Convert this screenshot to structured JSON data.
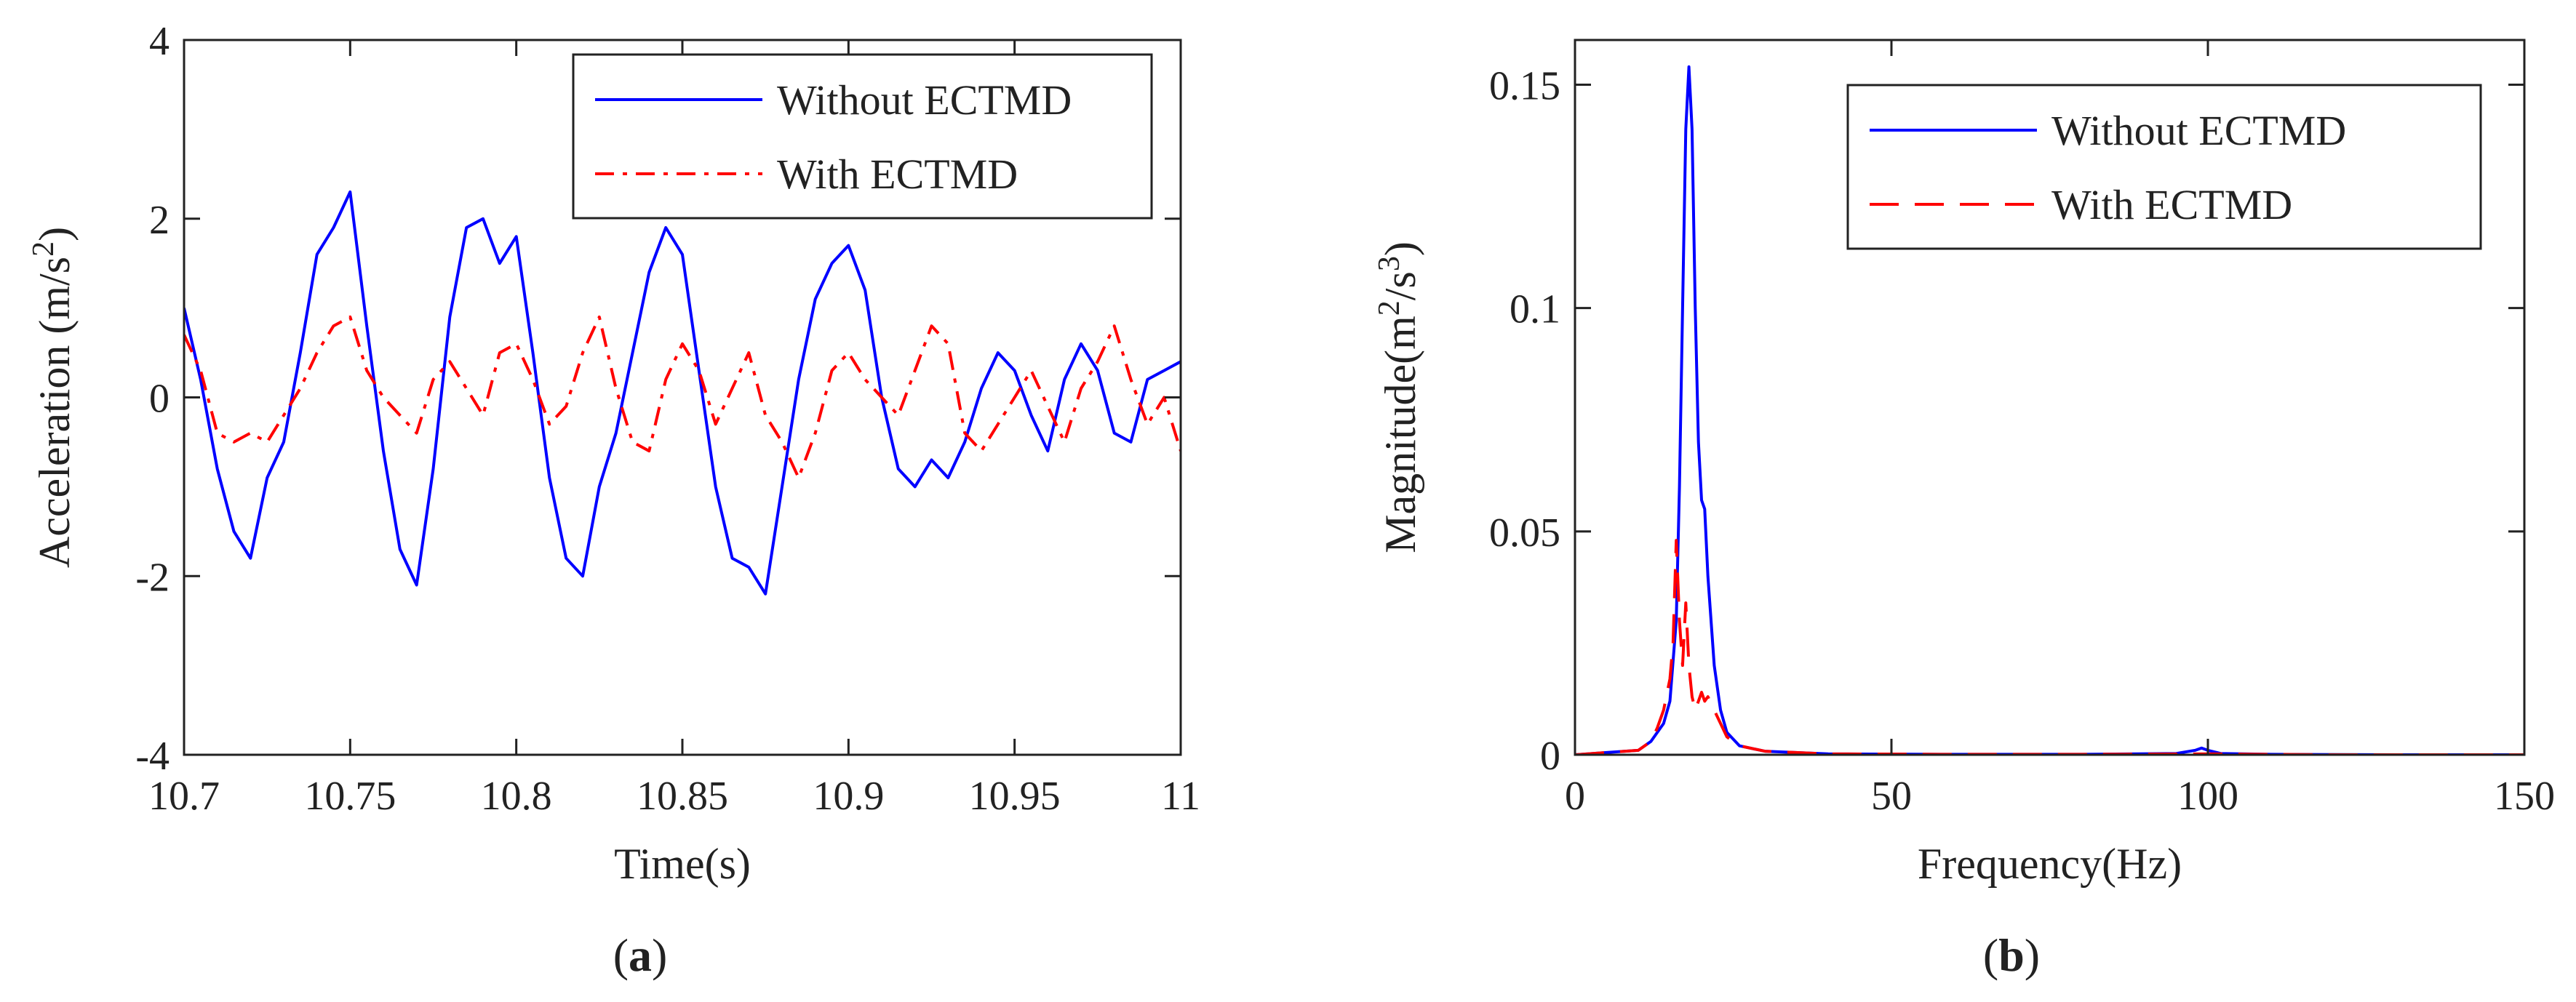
{
  "chart_data": [
    {
      "type": "line",
      "panel_label": "a",
      "xlabel": "Time(s)",
      "ylabel": "Acceleration (m/s²)",
      "ylabel_parts": {
        "prefix": "Acceleration (m/s",
        "sup": "2",
        "suffix": ")"
      },
      "xlim": [
        10.7,
        11.0
      ],
      "ylim": [
        -4,
        4
      ],
      "x_ticks": [
        10.7,
        10.75,
        10.8,
        10.85,
        10.9,
        10.95,
        11
      ],
      "x_tick_labels": [
        "10.7",
        "10.75",
        "10.8",
        "10.85",
        "10.9",
        "10.95",
        "11"
      ],
      "y_ticks": [
        -4,
        -2,
        0,
        2,
        4
      ],
      "y_tick_labels": [
        "-4",
        "-2",
        "0",
        "2",
        "4"
      ],
      "grid": false,
      "legend_position": "top-right",
      "series": [
        {
          "name": "Without ECTMD",
          "color": "#0000ff",
          "style": "solid",
          "x": [
            10.7,
            10.705,
            10.71,
            10.715,
            10.72,
            10.725,
            10.73,
            10.735,
            10.74,
            10.745,
            10.75,
            10.755,
            10.76,
            10.765,
            10.77,
            10.775,
            10.78,
            10.785,
            10.79,
            10.795,
            10.8,
            10.805,
            10.81,
            10.815,
            10.82,
            10.825,
            10.83,
            10.835,
            10.84,
            10.845,
            10.85,
            10.855,
            10.86,
            10.865,
            10.87,
            10.875,
            10.88,
            10.885,
            10.89,
            10.895,
            10.9,
            10.905,
            10.91,
            10.915,
            10.92,
            10.925,
            10.93,
            10.935,
            10.94,
            10.945,
            10.95,
            10.955,
            10.96,
            10.965,
            10.97,
            10.975,
            10.98,
            10.985,
            10.99,
            10.995,
            11.0
          ],
          "values": [
            1.0,
            0.2,
            -0.8,
            -1.5,
            -1.8,
            -0.9,
            -0.5,
            0.5,
            1.6,
            1.9,
            2.3,
            0.8,
            -0.6,
            -1.7,
            -2.1,
            -0.8,
            0.9,
            1.9,
            2.0,
            1.5,
            1.8,
            0.5,
            -0.9,
            -1.8,
            -2.0,
            -1.0,
            -0.4,
            0.5,
            1.4,
            1.9,
            1.6,
            0.3,
            -1.0,
            -1.8,
            -1.9,
            -2.2,
            -1.0,
            0.2,
            1.1,
            1.5,
            1.7,
            1.2,
            0.0,
            -0.8,
            -1.0,
            -0.7,
            -0.9,
            -0.5,
            0.1,
            0.5,
            0.3,
            -0.2,
            -0.6,
            0.2,
            0.6,
            0.3,
            -0.4,
            -0.5,
            0.2,
            0.3,
            0.4
          ]
        },
        {
          "name": "With ECTMD",
          "color": "#ff0000",
          "style": "dashdot",
          "x": [
            10.7,
            10.705,
            10.71,
            10.715,
            10.72,
            10.725,
            10.73,
            10.735,
            10.74,
            10.745,
            10.75,
            10.755,
            10.76,
            10.765,
            10.77,
            10.775,
            10.78,
            10.785,
            10.79,
            10.795,
            10.8,
            10.805,
            10.81,
            10.815,
            10.82,
            10.825,
            10.83,
            10.835,
            10.84,
            10.845,
            10.85,
            10.855,
            10.86,
            10.865,
            10.87,
            10.875,
            10.88,
            10.885,
            10.89,
            10.895,
            10.9,
            10.905,
            10.91,
            10.915,
            10.92,
            10.925,
            10.93,
            10.935,
            10.94,
            10.945,
            10.95,
            10.955,
            10.96,
            10.965,
            10.97,
            10.975,
            10.98,
            10.985,
            10.99,
            10.995,
            11.0
          ],
          "values": [
            0.7,
            0.3,
            -0.4,
            -0.5,
            -0.4,
            -0.5,
            -0.2,
            0.1,
            0.5,
            0.8,
            0.9,
            0.3,
            0.0,
            -0.2,
            -0.4,
            0.2,
            0.4,
            0.1,
            -0.2,
            0.5,
            0.6,
            0.2,
            -0.3,
            -0.1,
            0.5,
            0.9,
            0.1,
            -0.5,
            -0.6,
            0.2,
            0.6,
            0.3,
            -0.3,
            0.1,
            0.5,
            -0.2,
            -0.5,
            -0.9,
            -0.4,
            0.3,
            0.5,
            0.2,
            0.0,
            -0.2,
            0.3,
            0.8,
            0.6,
            -0.4,
            -0.6,
            -0.3,
            0.0,
            0.3,
            -0.1,
            -0.5,
            0.1,
            0.4,
            0.8,
            0.2,
            -0.3,
            0.0,
            -0.6
          ]
        }
      ]
    },
    {
      "type": "line",
      "panel_label": "b",
      "xlabel": "Frequency(Hz)",
      "ylabel": "Magnitude(m²/s³)",
      "ylabel_parts": {
        "prefix": "Magnitude(m",
        "sup": "2",
        "mid": "/s",
        "sup2": "3",
        "suffix": ")"
      },
      "xlim": [
        0,
        150
      ],
      "ylim": [
        0,
        0.16
      ],
      "x_ticks": [
        0,
        50,
        100,
        150
      ],
      "x_tick_labels": [
        "0",
        "50",
        "100",
        "150"
      ],
      "y_ticks": [
        0,
        0.05,
        0.1,
        0.15
      ],
      "y_tick_labels": [
        "0",
        "0.05",
        "0.1",
        "0.15"
      ],
      "grid": false,
      "legend_position": "top-right",
      "series": [
        {
          "name": "Without ECTMD",
          "color": "#0000ff",
          "style": "solid",
          "x": [
            0,
            5,
            10,
            12,
            14,
            15,
            16,
            16.5,
            17,
            17.5,
            18,
            18.5,
            19,
            19.5,
            20,
            20.5,
            21,
            22,
            23,
            24,
            26,
            30,
            40,
            60,
            80,
            95,
            98,
            99,
            100,
            102,
            110,
            130,
            150
          ],
          "values": [
            0.0,
            0.0005,
            0.001,
            0.003,
            0.007,
            0.012,
            0.03,
            0.06,
            0.1,
            0.14,
            0.154,
            0.14,
            0.1,
            0.07,
            0.057,
            0.055,
            0.04,
            0.02,
            0.01,
            0.005,
            0.002,
            0.0008,
            0.0002,
            0.0001,
            0.0001,
            0.0003,
            0.001,
            0.0015,
            0.001,
            0.0003,
            0.0001,
            0.0,
            0.0
          ]
        },
        {
          "name": "With ECTMD",
          "color": "#ff0000",
          "style": "dashed",
          "x": [
            0,
            5,
            10,
            12,
            13,
            14,
            15,
            15.5,
            16,
            16.5,
            17,
            17.5,
            18,
            18.5,
            19,
            19.5,
            20,
            20.5,
            21,
            22,
            23,
            24,
            26,
            30,
            40,
            60,
            80,
            100,
            120,
            150
          ],
          "values": [
            0.0,
            0.0005,
            0.001,
            0.003,
            0.006,
            0.01,
            0.017,
            0.025,
            0.048,
            0.03,
            0.02,
            0.034,
            0.02,
            0.013,
            0.01,
            0.012,
            0.014,
            0.012,
            0.013,
            0.01,
            0.007,
            0.004,
            0.002,
            0.0008,
            0.0002,
            0.0001,
            0.0001,
            0.0002,
            0.0,
            0.0
          ]
        }
      ]
    }
  ]
}
